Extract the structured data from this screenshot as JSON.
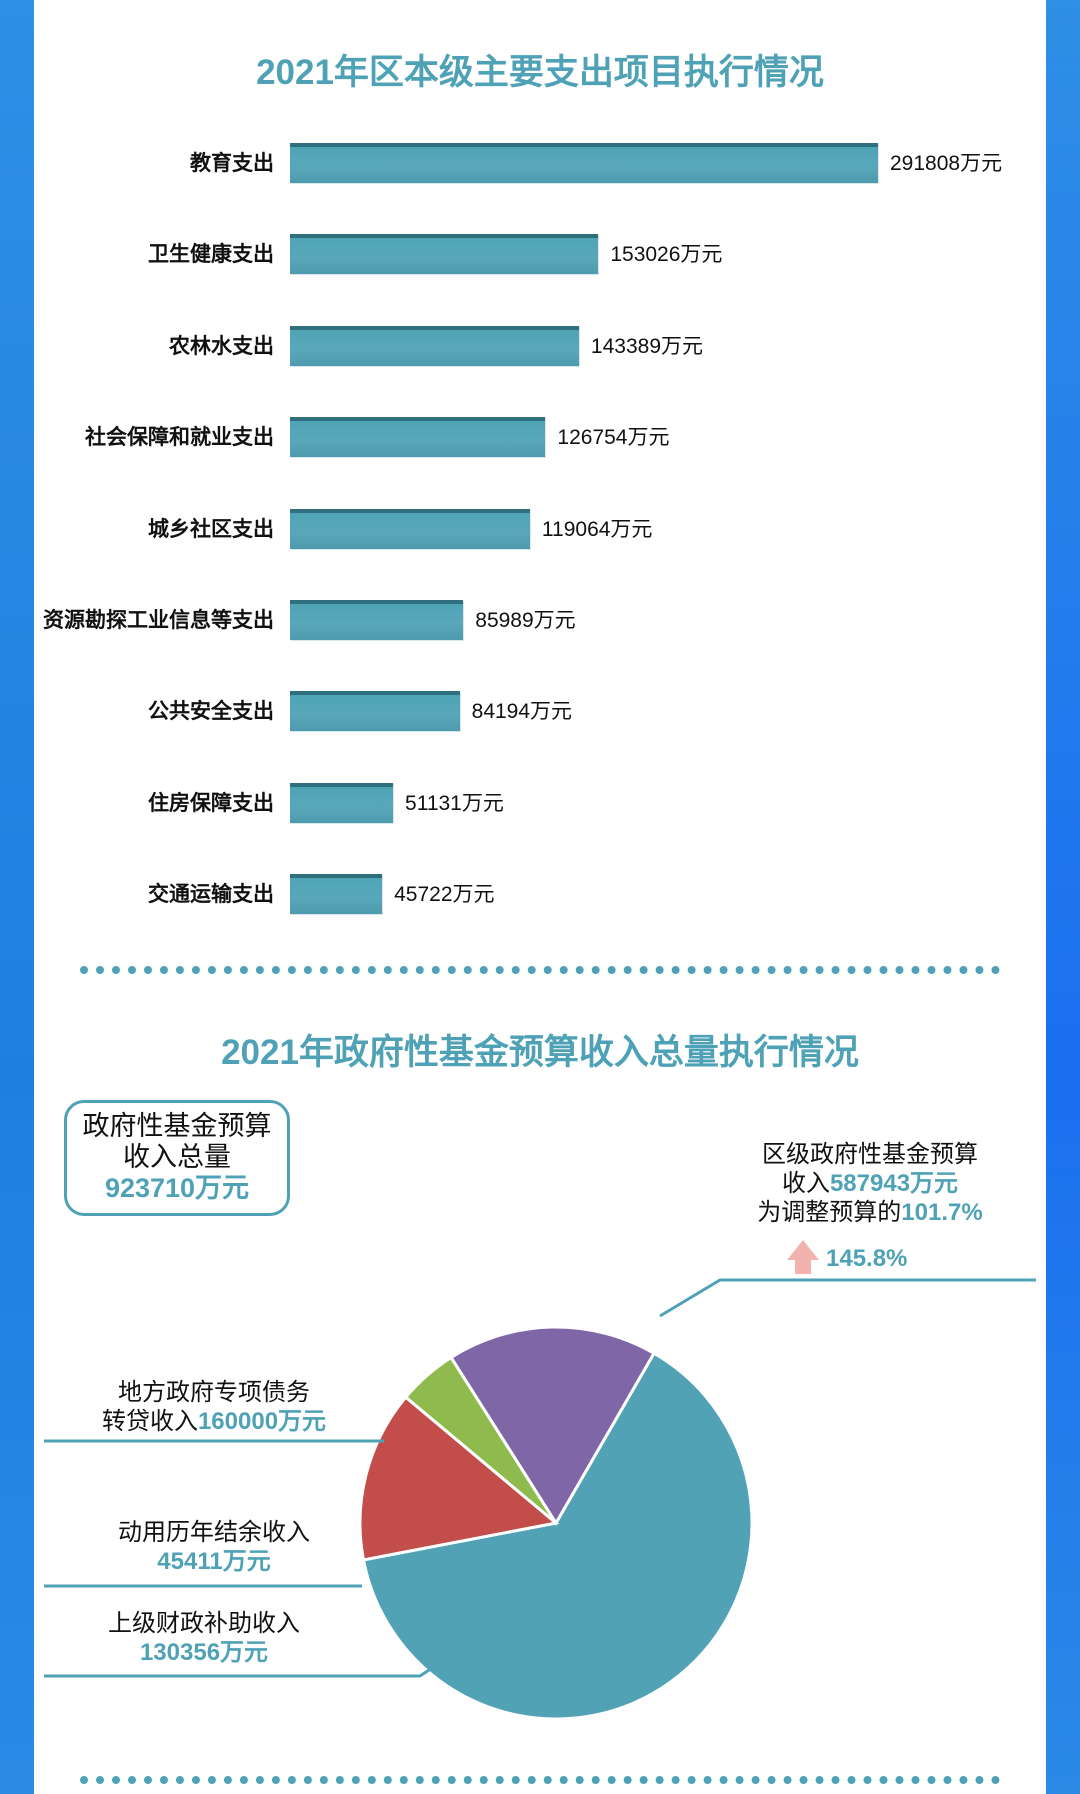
{
  "chart_data": [
    {
      "type": "bar",
      "orientation": "horizontal",
      "title": "2021年区本级主要支出项目执行情况",
      "categories": [
        "教育支出",
        "卫生健康支出",
        "农林水支出",
        "社会保障和就业支出",
        "城乡社区支出",
        "资源勘探工业信息等支出",
        "公共安全支出",
        "住房保障支出",
        "交通运输支出"
      ],
      "values": [
        291808,
        153026,
        143389,
        126754,
        119064,
        85989,
        84194,
        51131,
        45722
      ],
      "value_labels": [
        "291808万元",
        "153026万元",
        "143389万元",
        "126754万元",
        "119064万元",
        "85989万元",
        "84194万元",
        "51131万元",
        "45722万元"
      ],
      "unit": "万元",
      "color": "#56a3b6"
    },
    {
      "type": "pie",
      "title": "2021年政府性基金预算收入总量执行情况",
      "total_box": {
        "line1": "政府性基金预算",
        "line2": "收入总量",
        "value": "923710万元"
      },
      "slices": [
        {
          "name_lines": [
            "区级政府性基金预算",
            "收入"
          ],
          "value": 587943,
          "value_label": "587943万元",
          "color": "#52a2b6"
        },
        {
          "name_lines": [
            "上级财政补助收入"
          ],
          "value": 130356,
          "value_label": "130356万元",
          "color": "#c24d4a"
        },
        {
          "name_lines": [
            "动用历年结余收入"
          ],
          "value": 45411,
          "value_label": "45411万元",
          "color": "#8fbb4e"
        },
        {
          "name_lines": [
            "地方政府专项债务",
            "转贷收入"
          ],
          "value": 160000,
          "value_label": "160000万元",
          "color": "#7f66a6"
        }
      ],
      "annotation": {
        "prefix": "为调整预算的",
        "pct": "101.7%",
        "growth": "145.8%",
        "arrow": "up-arrow-icon",
        "arrow_color": "#f2b3ae"
      }
    }
  ]
}
